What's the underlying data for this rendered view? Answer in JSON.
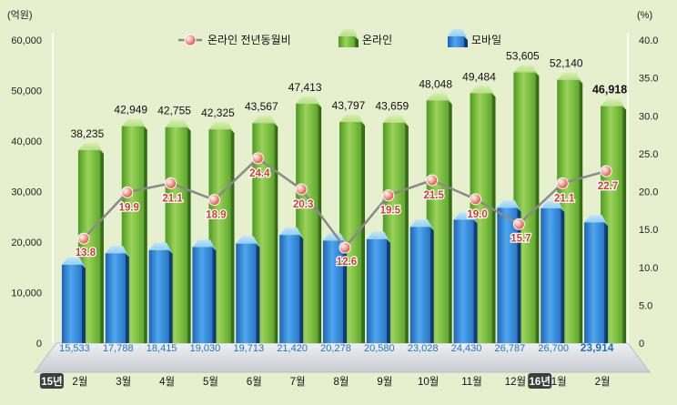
{
  "chart_data": {
    "type": "bar",
    "y_left_unit": "(억원)",
    "y_right_unit": "(%)",
    "y_left_ticks": [
      "0",
      "10,000",
      "20,000",
      "30,000",
      "40,000",
      "50,000",
      "60,000"
    ],
    "y_right_ticks": [
      "0",
      "5.0",
      "10.0",
      "15.0",
      "20.0",
      "25.0",
      "30.0",
      "35.0",
      "40.0"
    ],
    "ylim_left": [
      0,
      60000
    ],
    "ylim_right": [
      0,
      40
    ],
    "legend_position": "top",
    "legend": [
      {
        "name": "온라인 전년동월비",
        "kind": "line"
      },
      {
        "name": "온라인",
        "kind": "bar-green"
      },
      {
        "name": "모바일",
        "kind": "bar-blue"
      }
    ],
    "categories": [
      "2월",
      "3월",
      "4월",
      "5월",
      "6월",
      "7월",
      "8월",
      "9월",
      "10월",
      "11월",
      "12월",
      "1월",
      "2월"
    ],
    "year_markers": [
      {
        "label": "15년",
        "index": 0
      },
      {
        "label": "16년",
        "index": 11
      }
    ],
    "series": [
      {
        "name": "온라인",
        "axis": "left",
        "values": [
          38235,
          42949,
          42755,
          42325,
          43567,
          47413,
          43797,
          43659,
          48048,
          49484,
          53605,
          52140,
          46918
        ],
        "labels": [
          "38,235",
          "42,949",
          "42,755",
          "42,325",
          "43,567",
          "47,413",
          "43,797",
          "43,659",
          "48,048",
          "49,484",
          "53,605",
          "52,140",
          "46,918"
        ]
      },
      {
        "name": "모바일",
        "axis": "left",
        "values": [
          15533,
          17788,
          18415,
          19030,
          19713,
          21420,
          20278,
          20580,
          23028,
          24430,
          26787,
          26700,
          23914
        ],
        "labels": [
          "15,533",
          "17,788",
          "18,415",
          "19,030",
          "19,713",
          "21,420",
          "20,278",
          "20,580",
          "23,028",
          "24,430",
          "26,787",
          "26,700",
          "23,914"
        ]
      },
      {
        "name": "온라인 전년동월비",
        "axis": "right",
        "values": [
          13.8,
          19.9,
          21.1,
          18.9,
          24.4,
          20.3,
          12.6,
          19.5,
          21.5,
          19.0,
          15.7,
          21.1,
          22.7
        ],
        "labels": [
          "13.8",
          "19.9",
          "21.1",
          "18.9",
          "24.4",
          "20.3",
          "12.6",
          "19.5",
          "21.5",
          "19.0",
          "15.7",
          "21.1",
          "22.7"
        ]
      }
    ],
    "colors": {
      "background": "#e6f0ce",
      "online_bar": "#7cc242",
      "mobile_bar": "#3a8fd8",
      "line": "#8a8a8a",
      "marker": "#f07b74",
      "yoy_label": "#d53b2b",
      "mobile_label": "#1d72c2",
      "year_box": "#3d3d3d"
    }
  }
}
